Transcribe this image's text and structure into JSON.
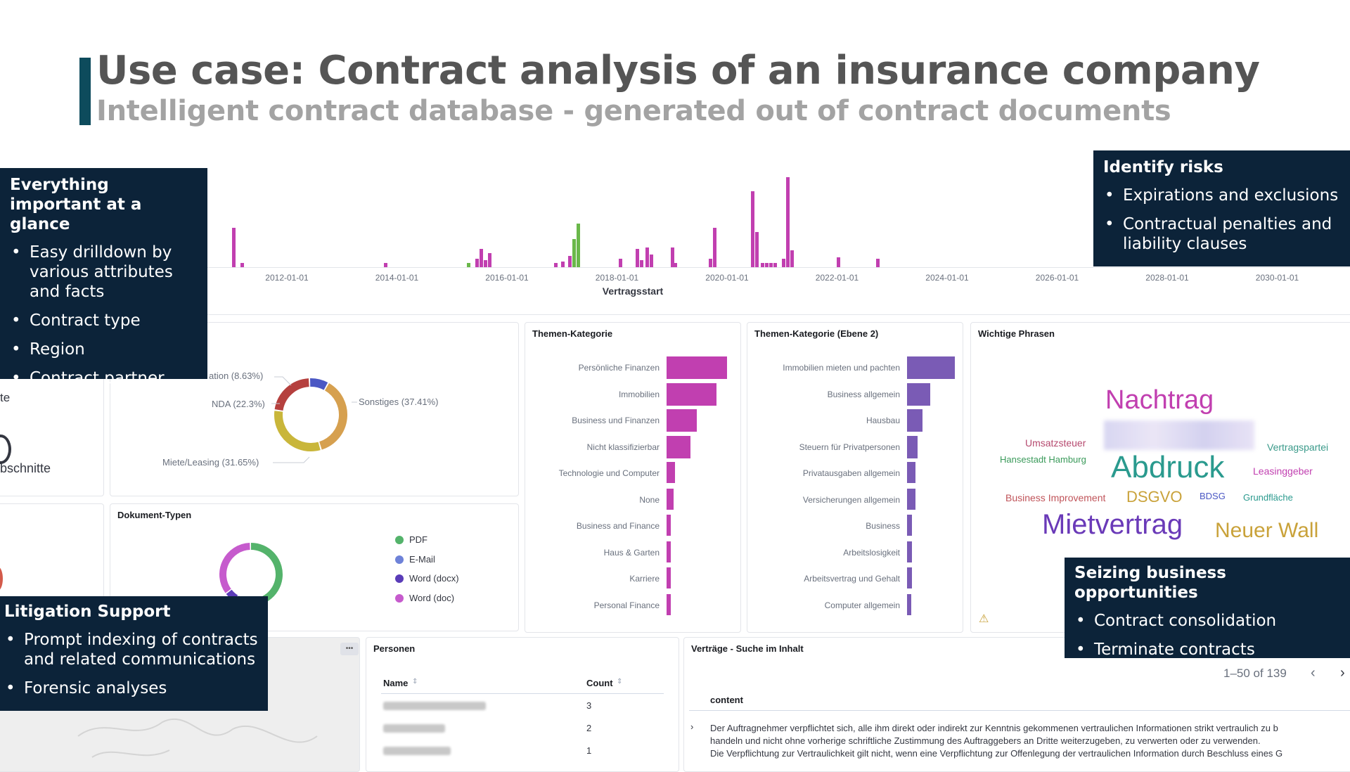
{
  "header": {
    "title": "Use case: Contract analysis of an insurance company",
    "subtitle": "Intelligent contract database - generated out of contract documents"
  },
  "timeline": {
    "axis_title": "Vertragsstart",
    "ticks": [
      "2012-01-01",
      "2014-01-01",
      "2016-01-01",
      "2018-01-01",
      "2020-01-01",
      "2022-01-01",
      "2024-01-01",
      "2026-01-01",
      "2028-01-01",
      "2030-01-01"
    ],
    "colors": {
      "magenta": "#c13fb0",
      "green": "#6ab84a"
    }
  },
  "contract_types": {
    "labels": [
      "ation (8.63%)",
      "NDA (22.3%)",
      "Miete/Leasing (31.65%)",
      "Sonstiges (37.41%)"
    ],
    "slices": [
      {
        "value": 37.41,
        "color": "#d6a04f"
      },
      {
        "value": 31.65,
        "color": "#c9b63a"
      },
      {
        "value": 22.3,
        "color": "#b5403e"
      },
      {
        "value": 8.63,
        "color": "#4b58c4"
      }
    ]
  },
  "left_panel": {
    "partial_label_1": "te",
    "partial_label_2": "bschnitte"
  },
  "dokument_typen": {
    "title": "Dokument-Typen",
    "legend": [
      {
        "label": "PDF",
        "color": "#54b36b"
      },
      {
        "label": "E-Mail",
        "color": "#6e82d8"
      },
      {
        "label": "Word (docx)",
        "color": "#5a3cb8"
      },
      {
        "label": "Word (doc)",
        "color": "#c65bcd"
      }
    ],
    "slices": [
      {
        "value": 55,
        "color": "#54b36b"
      },
      {
        "value": 4,
        "color": "#6e82d8"
      },
      {
        "value": 6,
        "color": "#5a3cb8"
      },
      {
        "value": 35,
        "color": "#c65bcd"
      }
    ]
  },
  "themen_kategorie": {
    "title": "Themen-Kategorie",
    "color": "#c13fb0",
    "categories": [
      "Persönliche Finanzen",
      "Immobilien",
      "Business und Finanzen",
      "Nicht klassifizierbar",
      "Technologie und Computer",
      "None",
      "Business and Finance",
      "Haus & Garten",
      "Karriere",
      "Personal Finance"
    ],
    "values": [
      100,
      82,
      50,
      40,
      14,
      12,
      7,
      7,
      7,
      7
    ]
  },
  "themen_kategorie_2": {
    "title": "Themen-Kategorie (Ebene 2)",
    "color": "#7a5bb5",
    "categories": [
      "Immobilien mieten und pachten",
      "Business allgemein",
      "Hausbau",
      "Steuern für Privatpersonen",
      "Privatausgaben allgemein",
      "Versicherungen allgemein",
      "Business",
      "Arbeitslosigkeit",
      "Arbeitsvertrag und Gehalt",
      "Computer allgemein"
    ],
    "values": [
      100,
      48,
      32,
      22,
      18,
      18,
      10,
      10,
      10,
      7
    ]
  },
  "wichtige_phrasen": {
    "title": "Wichtige Phrasen",
    "words": {
      "nachtrag": "Nachtrag",
      "umsatzsteuer": "Umsatzsteuer",
      "vertragspartei": "Vertragspartei",
      "hansestadt": "Hansestadt Hamburg",
      "abdruck": "Abdruck",
      "leasinggeber": "Leasinggeber",
      "business_improvement": "Business Improvement",
      "dsgvo": "DSGVO",
      "bdsg": "BDSG",
      "grundflaeche": "Grundfläche",
      "mietvertrag": "Mietvertrag",
      "neuer_wall": "Neuer Wall"
    }
  },
  "personen": {
    "title": "Personen",
    "col_name": "Name",
    "col_count": "Count",
    "counts": [
      "3",
      "2",
      "1"
    ]
  },
  "vertraege": {
    "title": "Verträge - Suche im Inhalt",
    "pagination": "1–50 of 139",
    "column": "content",
    "lines": [
      "Der Auftragnehmer verpflichtet sich, alle ihm direkt oder indirekt zur Kenntnis gekommenen vertraulichen Informationen strikt vertraulich zu b",
      "handeln und nicht ohne vorherige schriftliche Zustimmung des Auftraggebers an Dritte weiterzugeben, zu verwerten oder zu verwenden.",
      "Die Verpflichtung zur Vertraulichkeit gilt nicht, wenn eine Verpflichtung zur Offenlegung der vertraulichen Information durch Beschluss eines G"
    ]
  },
  "callouts": {
    "glance": {
      "title": "Everything important at a glance",
      "items": [
        "Easy drilldown by various attributes and facts",
        "Contract type",
        "Region",
        "Contract partner"
      ]
    },
    "risks": {
      "title": "Identify risks",
      "items": [
        "Expirations and exclusions",
        "Contractual penalties and liability clauses"
      ]
    },
    "opportunities": {
      "title": "Seizing business opportunities",
      "items": [
        "Contract consolidation",
        "Terminate contracts"
      ]
    },
    "litigation": {
      "title": "Litigation Support",
      "items": [
        "Prompt indexing of contracts and related communications",
        "Forensic analyses"
      ]
    }
  }
}
